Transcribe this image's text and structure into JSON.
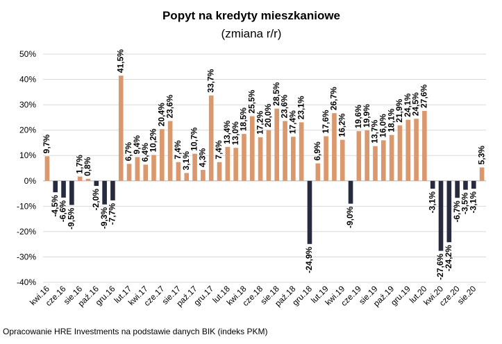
{
  "chart_data": {
    "type": "bar",
    "title": "Popyt na kredyty mieszkaniowe",
    "subtitle": "(zmiana r/r)",
    "source": "Opracowanie HRE Investments na podstawie danych BIK (indeks PKM)",
    "categories": [
      "kwi.16",
      null,
      "cze.16",
      null,
      "sie.16",
      null,
      "paź.16",
      null,
      "gru.16",
      null,
      "lut.17",
      null,
      "kwi.17",
      null,
      "cze.17",
      null,
      "sie.17",
      null,
      "paź.17",
      null,
      "gru.17",
      null,
      "lut.18",
      null,
      "kwi.18",
      null,
      "cze.18",
      null,
      "sie.18",
      null,
      "paź.18",
      null,
      "gru.18",
      null,
      "lut.19",
      null,
      "kwi.19",
      null,
      "cze.19",
      null,
      "sie.19",
      null,
      "paź.19",
      null,
      "gru.19",
      null,
      "lut.20",
      null,
      "kwi.20",
      null,
      "cze.20",
      null,
      "sie.20",
      null
    ],
    "values": [
      9.7,
      -4.5,
      -6.6,
      -9.5,
      1.7,
      0.8,
      -2.0,
      -9.3,
      -7.7,
      41.5,
      6.7,
      9.4,
      6.4,
      10.2,
      20.4,
      23.6,
      7.4,
      3.1,
      10.7,
      4.3,
      33.7,
      7.4,
      13.4,
      13.0,
      18.5,
      25.5,
      17.2,
      20.0,
      28.5,
      23.6,
      17.4,
      23.1,
      -24.9,
      6.9,
      17.6,
      26.7,
      16.2,
      -9.0,
      19.6,
      19.9,
      13.7,
      16.0,
      18.1,
      21.9,
      24.1,
      24.5,
      27.6,
      -3.1,
      -27.6,
      -24.2,
      -6.7,
      -3.5,
      -3.1,
      5.3
    ],
    "value_labels": [
      "9,7%",
      "-4,5%",
      "-6,6%",
      "-9,5%",
      "1,7%",
      "0,8%",
      "-2,0%",
      "-9,3%",
      "-7,7%",
      "41,5%",
      "6,7%",
      "9,4%",
      "6,4%",
      "10,2%",
      "20,4%",
      "23,6%",
      "7,4%",
      "3,1%",
      "10,7%",
      "4,3%",
      "33,7%",
      "7,4%",
      "13,4%",
      "13,0%",
      "18,5%",
      "25,5%",
      "17,2%",
      "20,0%",
      "28,5%",
      "23,6%",
      "17,4%",
      "23,1%",
      "-24,9%",
      "6,9%",
      "17,6%",
      "26,7%",
      "16,2%",
      "-9,0%",
      "19,6%",
      "19,9%",
      "13,7%",
      "16,0%",
      "18,1%",
      "21,9%",
      "24,1%",
      "24,5%",
      "27,6%",
      "-3,1%",
      "-27,6%",
      "-24,2%",
      "-6,7%",
      "-3,5%",
      "-3,1%",
      "5,3%"
    ],
    "color_positive": "#d9986e",
    "color_negative": "#262b3f",
    "ylim": [
      -40,
      50
    ],
    "yticks": [
      {
        "value": -40,
        "label": "-40%"
      },
      {
        "value": -30,
        "label": "-30%"
      },
      {
        "value": -20,
        "label": "-20%"
      },
      {
        "value": -10,
        "label": "-10%"
      },
      {
        "value": 0,
        "label": "0%"
      },
      {
        "value": 10,
        "label": "10%"
      },
      {
        "value": 20,
        "label": "20%"
      },
      {
        "value": 30,
        "label": "30%"
      },
      {
        "value": 40,
        "label": "40%"
      },
      {
        "value": 50,
        "label": "50%"
      }
    ],
    "grid": true
  }
}
